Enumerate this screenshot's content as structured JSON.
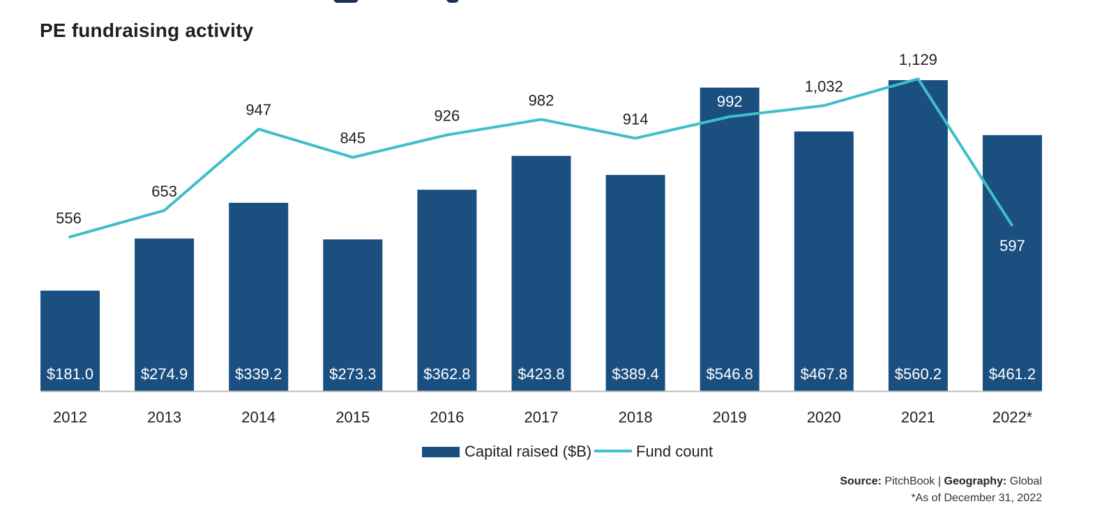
{
  "title": "PE fundraising activity",
  "source": {
    "label": "Source:",
    "value": "PitchBook",
    "separator": "|",
    "geo_label": "Geography:",
    "geo_value": "Global"
  },
  "footnote": "*As of December 31, 2022",
  "colors": {
    "bar": "#1b4f80",
    "line": "#3fbfc9",
    "axis": "#bdbdbd",
    "text": "#1f1f1f",
    "bar_label": "#ffffff"
  },
  "chart_data": {
    "type": "bar",
    "title": "PE fundraising activity",
    "categories": [
      "2012",
      "2013",
      "2014",
      "2015",
      "2016",
      "2017",
      "2018",
      "2019",
      "2020",
      "2021",
      "2022*"
    ],
    "series": [
      {
        "name": "Capital raised ($B)",
        "type": "bar",
        "values": [
          181.0,
          274.9,
          339.2,
          273.3,
          362.8,
          423.8,
          389.4,
          546.8,
          467.8,
          560.2,
          461.2
        ],
        "labels": [
          "$181.0",
          "$274.9",
          "$339.2",
          "$273.3",
          "$362.8",
          "$423.8",
          "$389.4",
          "$546.8",
          "$467.8",
          "$560.2",
          "$461.2"
        ]
      },
      {
        "name": "Fund count",
        "type": "line",
        "values": [
          556,
          653,
          947,
          845,
          926,
          982,
          914,
          992,
          1032,
          1129,
          597
        ],
        "labels": [
          "556",
          "653",
          "947",
          "845",
          "926",
          "982",
          "914",
          "992",
          "1,032",
          "1,129",
          "597"
        ]
      }
    ],
    "ylim_bar": [
      0,
      560.2
    ],
    "ylim_line": [
      0,
      1129
    ],
    "grid": false,
    "legend": "bottom-center"
  }
}
